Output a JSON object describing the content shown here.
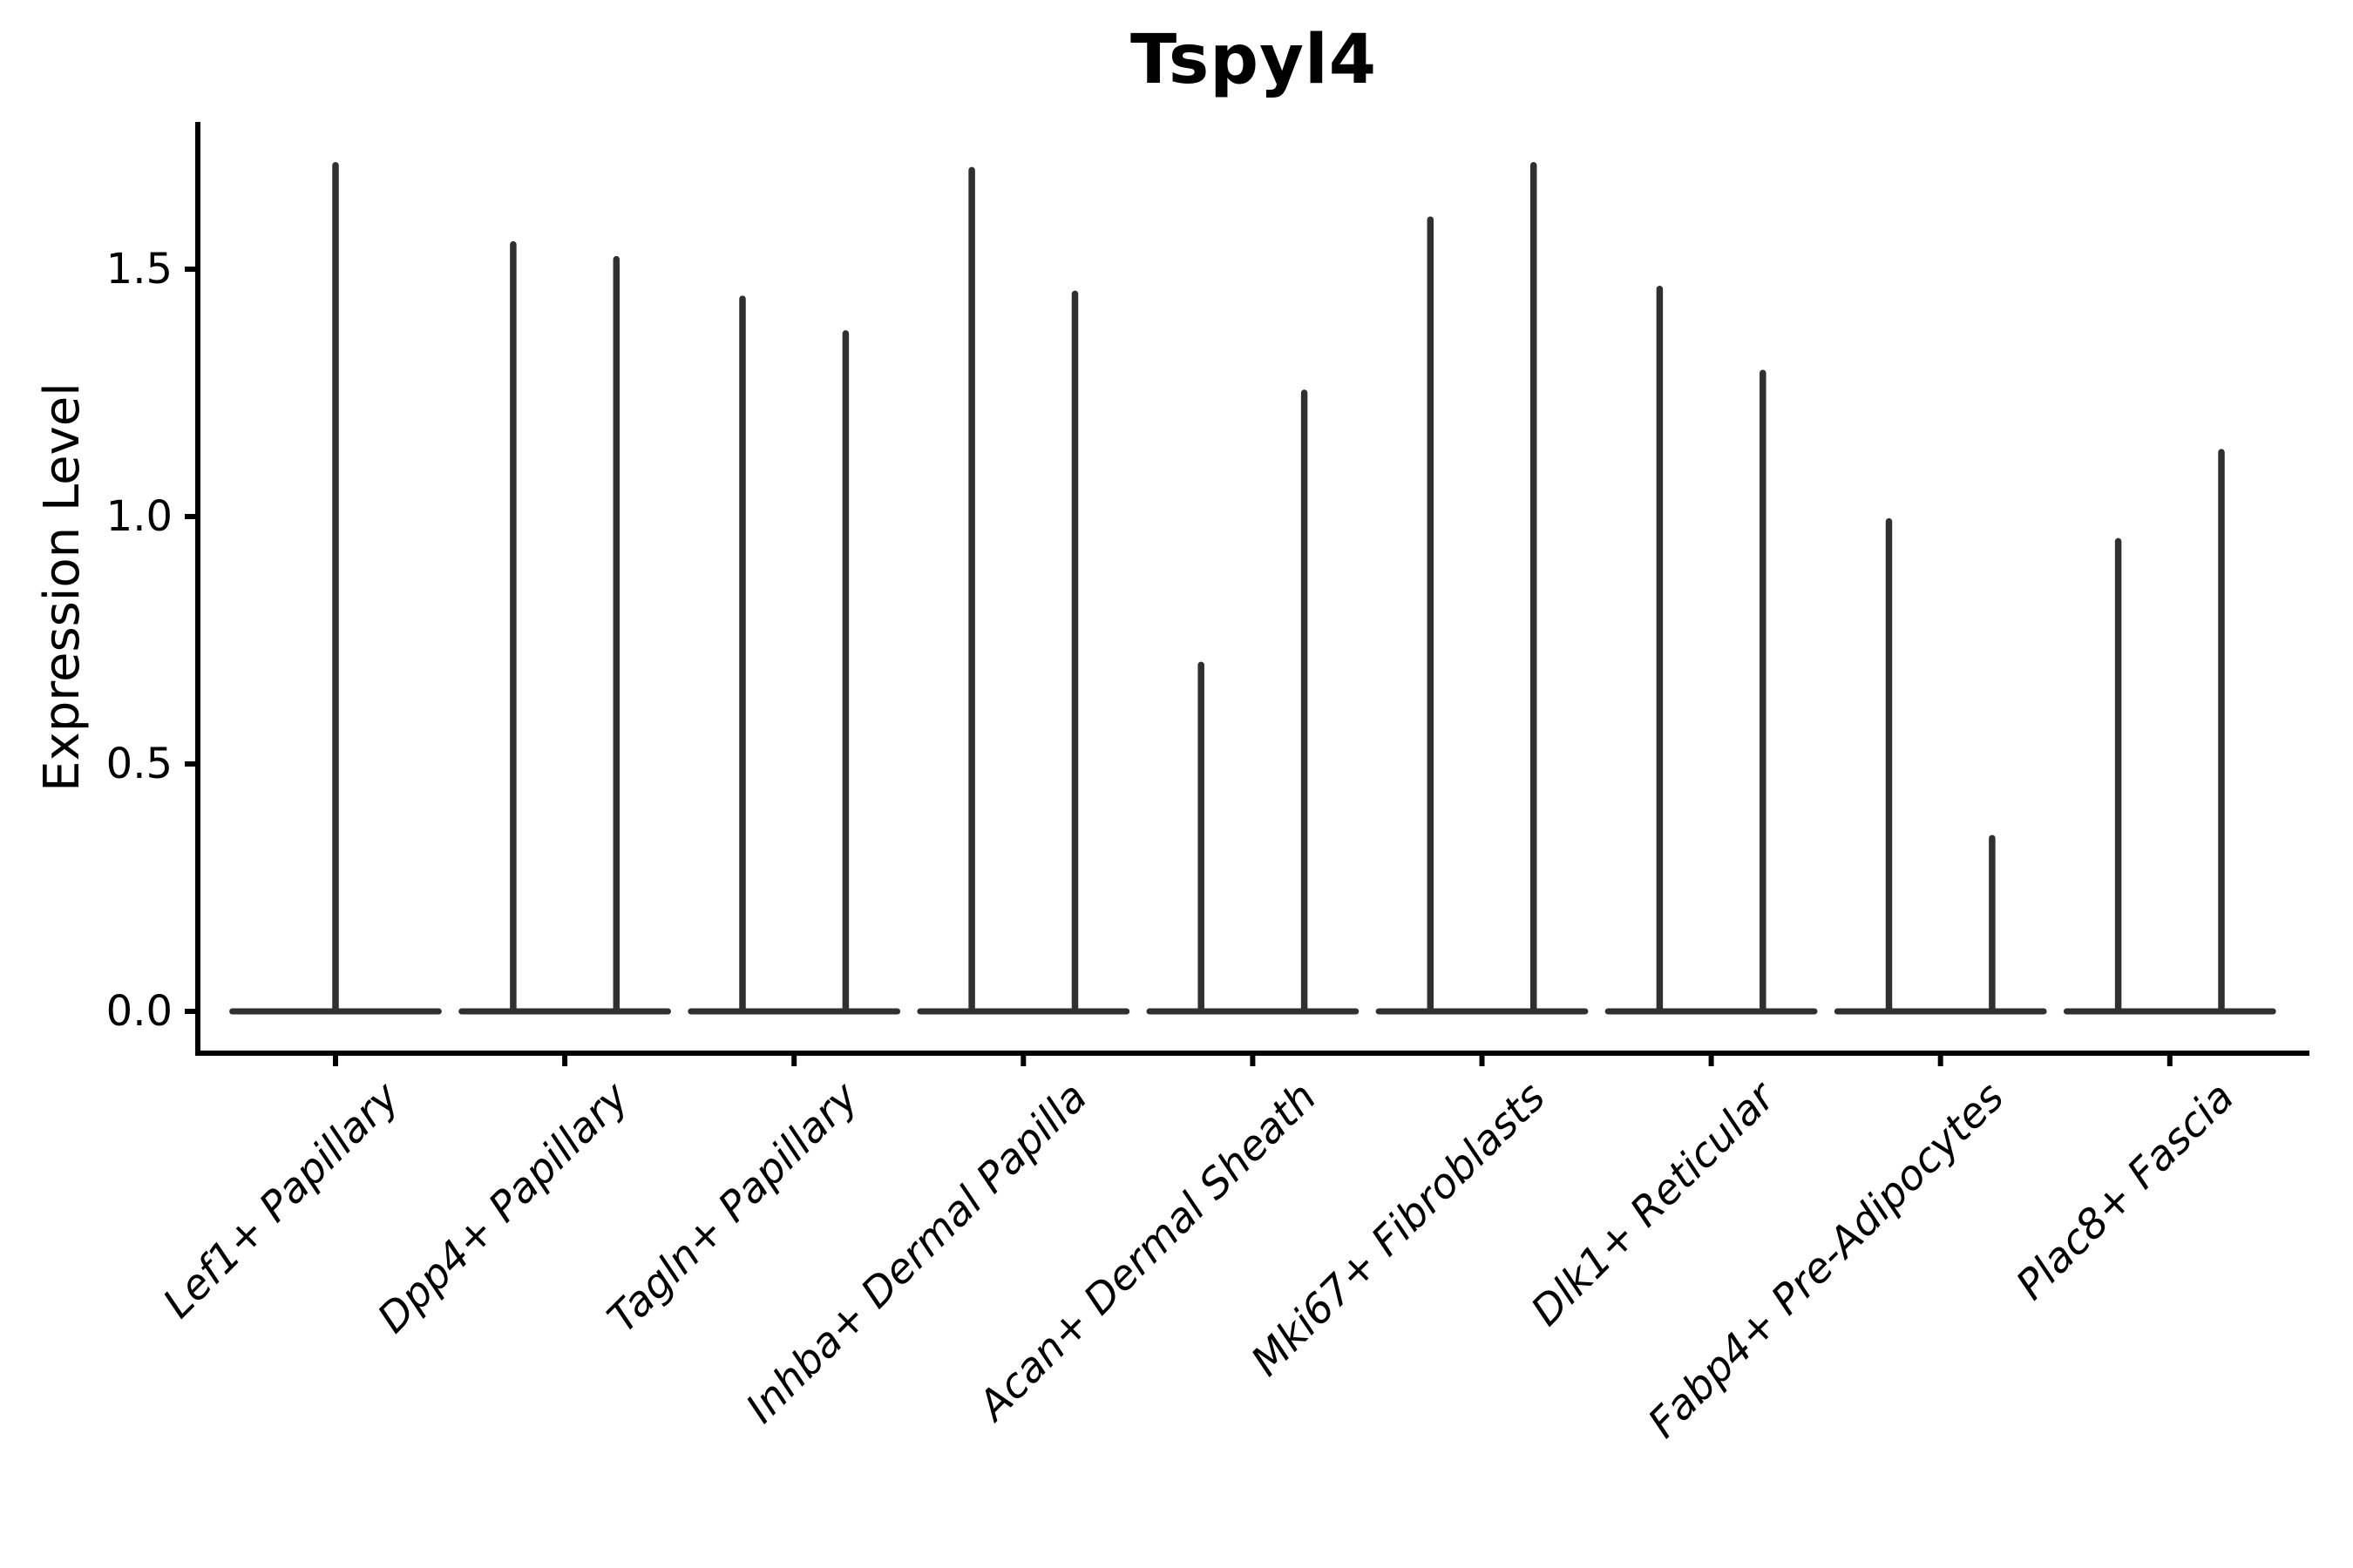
{
  "figure": {
    "title": "Tspyl4",
    "y_axis_title": "Expression Level"
  },
  "chart_data": {
    "type": "violin",
    "title": "Tspyl4",
    "xlabel": "",
    "ylabel": "Expression Level",
    "ylim": [
      -0.086,
      1.795
    ],
    "yticks": [
      0.0,
      0.5,
      1.0,
      1.5
    ],
    "ytick_labels": [
      "0.0",
      "0.5",
      "1.0",
      "1.5"
    ],
    "x_tick_label_angle": 45,
    "grid": false,
    "legend": "none",
    "categories": [
      "Lef1+ Papillary",
      "Dpp4+ Papillary",
      "Tagln+ Papillary",
      "Inhba+ Dermal Papilla",
      "Acan+ Dermal Sheath",
      "Mki67+ Fibroblasts",
      "Dlk1+ Reticular",
      "Fabp4+ Pre-Adipocytes",
      "Plac8+ Fascia"
    ],
    "series": [
      {
        "category": "Lef1+ Papillary",
        "violins": [
          {
            "offset": 0,
            "width": 0.9,
            "min": 0.0,
            "max": 1.71
          }
        ]
      },
      {
        "category": "Dpp4+ Papillary",
        "violins": [
          {
            "offset": -0.225,
            "width": 0.45,
            "min": 0.0,
            "max": 1.55
          },
          {
            "offset": 0.225,
            "width": 0.45,
            "min": 0.0,
            "max": 1.52
          }
        ]
      },
      {
        "category": "Tagln+ Papillary",
        "violins": [
          {
            "offset": -0.225,
            "width": 0.45,
            "min": 0.0,
            "max": 1.44
          },
          {
            "offset": 0.225,
            "width": 0.45,
            "min": 0.0,
            "max": 1.37
          }
        ]
      },
      {
        "category": "Inhba+ Dermal Papilla",
        "violins": [
          {
            "offset": -0.225,
            "width": 0.45,
            "min": 0.0,
            "max": 1.7
          },
          {
            "offset": 0.225,
            "width": 0.45,
            "min": 0.0,
            "max": 1.45
          }
        ]
      },
      {
        "category": "Acan+ Dermal Sheath",
        "violins": [
          {
            "offset": -0.225,
            "width": 0.45,
            "min": 0.0,
            "max": 0.7
          },
          {
            "offset": 0.225,
            "width": 0.45,
            "min": 0.0,
            "max": 1.25
          }
        ]
      },
      {
        "category": "Mki67+ Fibroblasts",
        "violins": [
          {
            "offset": -0.225,
            "width": 0.45,
            "min": 0.0,
            "max": 1.6
          },
          {
            "offset": 0.225,
            "width": 0.45,
            "min": 0.0,
            "max": 1.71
          }
        ]
      },
      {
        "category": "Dlk1+ Reticular",
        "violins": [
          {
            "offset": -0.225,
            "width": 0.45,
            "min": 0.0,
            "max": 1.46
          },
          {
            "offset": 0.225,
            "width": 0.45,
            "min": 0.0,
            "max": 1.29
          }
        ]
      },
      {
        "category": "Fabp4+ Pre-Adipocytes",
        "violins": [
          {
            "offset": -0.225,
            "width": 0.45,
            "min": 0.0,
            "max": 0.99
          },
          {
            "offset": 0.225,
            "width": 0.45,
            "min": 0.0,
            "max": 0.35
          }
        ]
      },
      {
        "category": "Plac8+ Fascia",
        "violins": [
          {
            "offset": -0.225,
            "width": 0.45,
            "min": 0.0,
            "max": 0.95
          },
          {
            "offset": 0.225,
            "width": 0.45,
            "min": 0.0,
            "max": 1.13
          }
        ]
      }
    ],
    "style": {
      "violin_color": "#303030",
      "axis_color": "#000000",
      "text_color": "#000000",
      "background": "#ffffff",
      "x_labels_italic": true,
      "title_bold": true
    }
  }
}
